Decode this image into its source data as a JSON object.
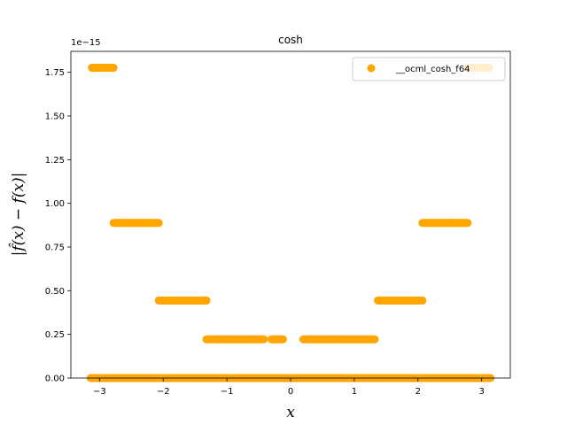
{
  "chart_data": {
    "type": "scatter",
    "title": "cosh",
    "xlabel": "x",
    "ylabel": "|f̂(x) − f(x)|",
    "offset_text": "1e−15",
    "xlim": [
      -3.45,
      3.45
    ],
    "ylim": [
      0,
      1.87e-15
    ],
    "xticks": [
      -3,
      -2,
      -1,
      0,
      1,
      2,
      3
    ],
    "xtick_labels": [
      "−3",
      "−2",
      "−1",
      "0",
      "1",
      "2",
      "3"
    ],
    "yticks": [
      0,
      2.5e-16,
      5e-16,
      7.5e-16,
      1e-15,
      1.25e-15,
      1.5e-15,
      1.75e-15
    ],
    "ytick_labels": [
      "0.00",
      "0.25",
      "0.50",
      "0.75",
      "1.00",
      "1.25",
      "1.50",
      "1.75"
    ],
    "legend_position": "top-right",
    "color": "#ffa500",
    "series": [
      {
        "name": "__ocml_cosh_f64",
        "segments": [
          {
            "x_from": -3.14,
            "x_to": 3.14,
            "y": 0
          },
          {
            "x_from": -3.12,
            "x_to": -2.78,
            "y": 1.776e-15
          },
          {
            "x_from": 2.78,
            "x_to": 3.12,
            "y": 1.776e-15
          },
          {
            "x_from": -2.78,
            "x_to": -2.07,
            "y": 8.88e-16
          },
          {
            "x_from": 2.07,
            "x_to": 2.78,
            "y": 8.88e-16
          },
          {
            "x_from": -2.07,
            "x_to": -1.32,
            "y": 4.44e-16
          },
          {
            "x_from": 1.37,
            "x_to": 2.07,
            "y": 4.44e-16
          },
          {
            "x_from": -1.32,
            "x_to": -0.42,
            "y": 2.22e-16
          },
          {
            "x_from": -0.3,
            "x_to": -0.12,
            "y": 2.22e-16
          },
          {
            "x_from": 0.2,
            "x_to": 1.32,
            "y": 2.22e-16
          }
        ]
      }
    ]
  }
}
